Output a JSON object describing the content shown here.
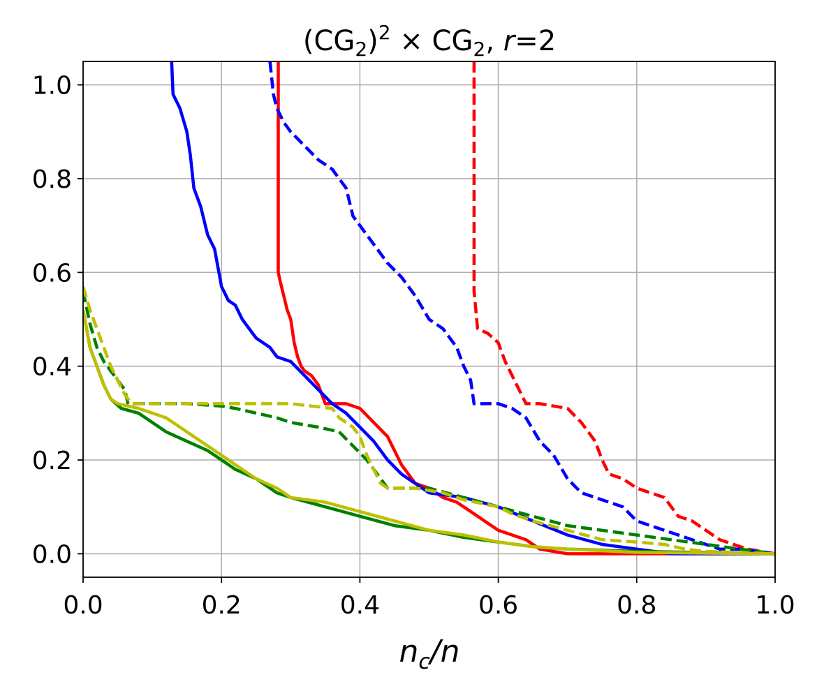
{
  "chart_data": {
    "type": "line",
    "title": {
      "open": "(CG",
      "sub1": "2",
      "close": ")",
      "sup": "2",
      "times": " × CG",
      "sub2": "2",
      "sep": ", ",
      "r": "r",
      "eq": "=2"
    },
    "xlabel": {
      "nc": "n",
      "c": "c",
      "slash": "/",
      "n": "n"
    },
    "ylabel": "",
    "xlim": [
      0,
      1.0
    ],
    "ylim": [
      -0.05,
      1.05
    ],
    "x_ticks": [
      0.0,
      0.2,
      0.4,
      0.6,
      0.8,
      1.0
    ],
    "x_tick_labels": [
      "0.0",
      "0.2",
      "0.4",
      "0.6",
      "0.8",
      "1.0"
    ],
    "y_ticks": [
      0.0,
      0.2,
      0.4,
      0.6,
      0.8,
      1.0
    ],
    "y_tick_labels": [
      "0.0",
      "0.2",
      "0.4",
      "0.6",
      "0.8",
      "1.0"
    ],
    "grid": true,
    "legend": "none",
    "series": [
      {
        "color": "#ff0000",
        "style": "solid",
        "points": [
          [
            0.282,
            1.05
          ],
          [
            0.282,
            0.98
          ],
          [
            0.282,
            0.6
          ],
          [
            0.285,
            0.58
          ],
          [
            0.29,
            0.55
          ],
          [
            0.295,
            0.52
          ],
          [
            0.3,
            0.5
          ],
          [
            0.305,
            0.45
          ],
          [
            0.31,
            0.42
          ],
          [
            0.315,
            0.4
          ],
          [
            0.32,
            0.39
          ],
          [
            0.33,
            0.38
          ],
          [
            0.34,
            0.36
          ],
          [
            0.35,
            0.32
          ],
          [
            0.38,
            0.32
          ],
          [
            0.4,
            0.31
          ],
          [
            0.42,
            0.28
          ],
          [
            0.44,
            0.25
          ],
          [
            0.46,
            0.19
          ],
          [
            0.48,
            0.15
          ],
          [
            0.5,
            0.14
          ],
          [
            0.52,
            0.12
          ],
          [
            0.54,
            0.11
          ],
          [
            0.56,
            0.09
          ],
          [
            0.58,
            0.07
          ],
          [
            0.6,
            0.05
          ],
          [
            0.62,
            0.04
          ],
          [
            0.64,
            0.03
          ],
          [
            0.66,
            0.01
          ],
          [
            0.7,
            0.0
          ],
          [
            1.0,
            0.0
          ]
        ]
      },
      {
        "color": "#ff0000",
        "style": "dashed",
        "points": [
          [
            0.565,
            1.05
          ],
          [
            0.565,
            0.56
          ],
          [
            0.57,
            0.48
          ],
          [
            0.585,
            0.47
          ],
          [
            0.6,
            0.45
          ],
          [
            0.61,
            0.41
          ],
          [
            0.63,
            0.35
          ],
          [
            0.64,
            0.32
          ],
          [
            0.66,
            0.32
          ],
          [
            0.7,
            0.31
          ],
          [
            0.72,
            0.28
          ],
          [
            0.74,
            0.24
          ],
          [
            0.75,
            0.2
          ],
          [
            0.76,
            0.17
          ],
          [
            0.78,
            0.16
          ],
          [
            0.8,
            0.14
          ],
          [
            0.82,
            0.13
          ],
          [
            0.84,
            0.12
          ],
          [
            0.86,
            0.08
          ],
          [
            0.88,
            0.07
          ],
          [
            0.9,
            0.05
          ],
          [
            0.92,
            0.03
          ],
          [
            0.94,
            0.02
          ],
          [
            0.96,
            0.01
          ],
          [
            1.0,
            0.0
          ]
        ]
      },
      {
        "color": "#0000ff",
        "style": "solid",
        "points": [
          [
            0.128,
            1.05
          ],
          [
            0.13,
            0.98
          ],
          [
            0.14,
            0.95
          ],
          [
            0.15,
            0.9
          ],
          [
            0.155,
            0.85
          ],
          [
            0.16,
            0.78
          ],
          [
            0.17,
            0.74
          ],
          [
            0.18,
            0.68
          ],
          [
            0.19,
            0.65
          ],
          [
            0.2,
            0.57
          ],
          [
            0.21,
            0.54
          ],
          [
            0.22,
            0.53
          ],
          [
            0.23,
            0.5
          ],
          [
            0.25,
            0.46
          ],
          [
            0.27,
            0.44
          ],
          [
            0.28,
            0.42
          ],
          [
            0.3,
            0.41
          ],
          [
            0.32,
            0.38
          ],
          [
            0.34,
            0.35
          ],
          [
            0.36,
            0.32
          ],
          [
            0.38,
            0.3
          ],
          [
            0.4,
            0.27
          ],
          [
            0.42,
            0.24
          ],
          [
            0.44,
            0.2
          ],
          [
            0.46,
            0.17
          ],
          [
            0.48,
            0.15
          ],
          [
            0.5,
            0.13
          ],
          [
            0.55,
            0.12
          ],
          [
            0.6,
            0.1
          ],
          [
            0.65,
            0.07
          ],
          [
            0.7,
            0.04
          ],
          [
            0.75,
            0.02
          ],
          [
            0.8,
            0.01
          ],
          [
            0.85,
            0.0
          ],
          [
            1.0,
            0.0
          ]
        ]
      },
      {
        "color": "#0000ff",
        "style": "dashed",
        "points": [
          [
            0.27,
            1.05
          ],
          [
            0.275,
            0.98
          ],
          [
            0.28,
            0.95
          ],
          [
            0.29,
            0.92
          ],
          [
            0.3,
            0.9
          ],
          [
            0.32,
            0.87
          ],
          [
            0.34,
            0.84
          ],
          [
            0.36,
            0.82
          ],
          [
            0.38,
            0.78
          ],
          [
            0.39,
            0.72
          ],
          [
            0.4,
            0.7
          ],
          [
            0.42,
            0.66
          ],
          [
            0.44,
            0.62
          ],
          [
            0.46,
            0.59
          ],
          [
            0.48,
            0.55
          ],
          [
            0.5,
            0.5
          ],
          [
            0.52,
            0.48
          ],
          [
            0.54,
            0.44
          ],
          [
            0.55,
            0.4
          ],
          [
            0.56,
            0.37
          ],
          [
            0.565,
            0.32
          ],
          [
            0.6,
            0.32
          ],
          [
            0.62,
            0.31
          ],
          [
            0.64,
            0.29
          ],
          [
            0.66,
            0.24
          ],
          [
            0.68,
            0.21
          ],
          [
            0.7,
            0.16
          ],
          [
            0.72,
            0.13
          ],
          [
            0.74,
            0.12
          ],
          [
            0.76,
            0.11
          ],
          [
            0.78,
            0.1
          ],
          [
            0.8,
            0.07
          ],
          [
            0.82,
            0.06
          ],
          [
            0.84,
            0.05
          ],
          [
            0.86,
            0.04
          ],
          [
            0.88,
            0.03
          ],
          [
            0.9,
            0.02
          ],
          [
            0.92,
            0.01
          ],
          [
            0.95,
            0.01
          ],
          [
            1.0,
            0.0
          ]
        ]
      },
      {
        "color": "#008000",
        "style": "solid",
        "points": [
          [
            0.0,
            0.52
          ],
          [
            0.01,
            0.44
          ],
          [
            0.02,
            0.4
          ],
          [
            0.03,
            0.36
          ],
          [
            0.04,
            0.33
          ],
          [
            0.055,
            0.31
          ],
          [
            0.08,
            0.3
          ],
          [
            0.1,
            0.28
          ],
          [
            0.12,
            0.26
          ],
          [
            0.15,
            0.24
          ],
          [
            0.18,
            0.22
          ],
          [
            0.2,
            0.2
          ],
          [
            0.22,
            0.18
          ],
          [
            0.25,
            0.16
          ],
          [
            0.28,
            0.13
          ],
          [
            0.3,
            0.12
          ],
          [
            0.35,
            0.1
          ],
          [
            0.4,
            0.08
          ],
          [
            0.45,
            0.06
          ],
          [
            0.5,
            0.05
          ],
          [
            0.55,
            0.035
          ],
          [
            0.6,
            0.025
          ],
          [
            0.65,
            0.015
          ],
          [
            0.7,
            0.01
          ],
          [
            0.8,
            0.005
          ],
          [
            1.0,
            0.0
          ]
        ]
      },
      {
        "color": "#008000",
        "style": "dashed",
        "points": [
          [
            0.0,
            0.56
          ],
          [
            0.01,
            0.49
          ],
          [
            0.02,
            0.44
          ],
          [
            0.03,
            0.41
          ],
          [
            0.04,
            0.39
          ],
          [
            0.05,
            0.37
          ],
          [
            0.06,
            0.35
          ],
          [
            0.065,
            0.32
          ],
          [
            0.1,
            0.32
          ],
          [
            0.15,
            0.32
          ],
          [
            0.2,
            0.315
          ],
          [
            0.22,
            0.31
          ],
          [
            0.25,
            0.3
          ],
          [
            0.28,
            0.29
          ],
          [
            0.3,
            0.28
          ],
          [
            0.34,
            0.27
          ],
          [
            0.37,
            0.26
          ],
          [
            0.39,
            0.23
          ],
          [
            0.41,
            0.2
          ],
          [
            0.43,
            0.16
          ],
          [
            0.44,
            0.14
          ],
          [
            0.5,
            0.14
          ],
          [
            0.55,
            0.12
          ],
          [
            0.6,
            0.1
          ],
          [
            0.65,
            0.08
          ],
          [
            0.7,
            0.06
          ],
          [
            0.75,
            0.05
          ],
          [
            0.8,
            0.04
          ],
          [
            0.85,
            0.03
          ],
          [
            0.9,
            0.02
          ],
          [
            0.95,
            0.01
          ],
          [
            1.0,
            0.0
          ]
        ]
      },
      {
        "color": "#bfbf00",
        "style": "solid",
        "points": [
          [
            0.0,
            0.52
          ],
          [
            0.01,
            0.44
          ],
          [
            0.02,
            0.4
          ],
          [
            0.03,
            0.36
          ],
          [
            0.04,
            0.33
          ],
          [
            0.05,
            0.32
          ],
          [
            0.08,
            0.31
          ],
          [
            0.1,
            0.3
          ],
          [
            0.12,
            0.29
          ],
          [
            0.15,
            0.26
          ],
          [
            0.18,
            0.23
          ],
          [
            0.2,
            0.21
          ],
          [
            0.22,
            0.19
          ],
          [
            0.25,
            0.16
          ],
          [
            0.28,
            0.14
          ],
          [
            0.3,
            0.12
          ],
          [
            0.35,
            0.11
          ],
          [
            0.4,
            0.09
          ],
          [
            0.45,
            0.07
          ],
          [
            0.5,
            0.05
          ],
          [
            0.55,
            0.04
          ],
          [
            0.6,
            0.025
          ],
          [
            0.65,
            0.015
          ],
          [
            0.7,
            0.01
          ],
          [
            0.8,
            0.003
          ],
          [
            1.0,
            0.0
          ]
        ]
      },
      {
        "color": "#bfbf00",
        "style": "dashed",
        "points": [
          [
            0.0,
            0.57
          ],
          [
            0.01,
            0.52
          ],
          [
            0.02,
            0.48
          ],
          [
            0.03,
            0.44
          ],
          [
            0.04,
            0.4
          ],
          [
            0.05,
            0.37
          ],
          [
            0.06,
            0.34
          ],
          [
            0.07,
            0.32
          ],
          [
            0.1,
            0.32
          ],
          [
            0.2,
            0.32
          ],
          [
            0.25,
            0.32
          ],
          [
            0.3,
            0.32
          ],
          [
            0.33,
            0.315
          ],
          [
            0.36,
            0.31
          ],
          [
            0.37,
            0.29
          ],
          [
            0.39,
            0.27
          ],
          [
            0.4,
            0.25
          ],
          [
            0.41,
            0.21
          ],
          [
            0.42,
            0.18
          ],
          [
            0.43,
            0.15
          ],
          [
            0.44,
            0.14
          ],
          [
            0.48,
            0.14
          ],
          [
            0.52,
            0.13
          ],
          [
            0.55,
            0.115
          ],
          [
            0.6,
            0.1
          ],
          [
            0.62,
            0.085
          ],
          [
            0.65,
            0.07
          ],
          [
            0.7,
            0.05
          ],
          [
            0.75,
            0.03
          ],
          [
            0.8,
            0.025
          ],
          [
            0.84,
            0.02
          ],
          [
            0.87,
            0.01
          ],
          [
            0.9,
            0.005
          ],
          [
            1.0,
            0.0
          ]
        ]
      }
    ]
  }
}
